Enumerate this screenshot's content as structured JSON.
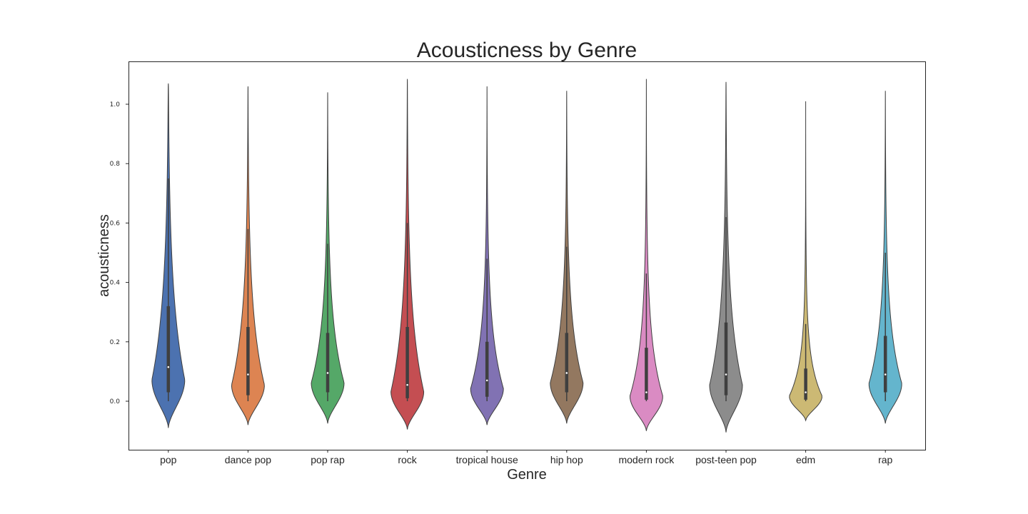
{
  "chart_data": {
    "type": "violin",
    "title": "Acousticness by Genre",
    "xlabel": "Genre",
    "ylabel": "acousticness",
    "ylim": [
      -0.16,
      1.15
    ],
    "yticks": [
      "0.0",
      "0.2",
      "0.4",
      "0.6",
      "0.8",
      "1.0"
    ],
    "grid": false,
    "legend": "none",
    "categories": [
      "pop",
      "dance pop",
      "pop rap",
      "rock",
      "tropical house",
      "hip hop",
      "modern rock",
      "post-teen pop",
      "edm",
      "rap"
    ],
    "series": [
      {
        "category": "pop",
        "color": "#4c72b0",
        "min": -0.09,
        "max": 1.07,
        "q1": 0.03,
        "median": 0.115,
        "q3": 0.32,
        "whisker_low": 0.0,
        "whisker_high": 0.75
      },
      {
        "category": "dance pop",
        "color": "#dd8452",
        "min": -0.08,
        "max": 1.06,
        "q1": 0.02,
        "median": 0.09,
        "q3": 0.25,
        "whisker_low": 0.0,
        "whisker_high": 0.58
      },
      {
        "category": "pop rap",
        "color": "#55a868",
        "min": -0.075,
        "max": 1.04,
        "q1": 0.03,
        "median": 0.095,
        "q3": 0.23,
        "whisker_low": 0.0,
        "whisker_high": 0.53
      },
      {
        "category": "rock",
        "color": "#c44e52",
        "min": -0.095,
        "max": 1.085,
        "q1": 0.01,
        "median": 0.055,
        "q3": 0.25,
        "whisker_low": 0.0,
        "whisker_high": 0.6
      },
      {
        "category": "tropical house",
        "color": "#8172b3",
        "min": -0.08,
        "max": 1.06,
        "q1": 0.015,
        "median": 0.07,
        "q3": 0.2,
        "whisker_low": 0.0,
        "whisker_high": 0.48
      },
      {
        "category": "hip hop",
        "color": "#937860",
        "min": -0.075,
        "max": 1.045,
        "q1": 0.03,
        "median": 0.095,
        "q3": 0.23,
        "whisker_low": 0.0,
        "whisker_high": 0.52
      },
      {
        "category": "modern rock",
        "color": "#da8bc3",
        "min": -0.1,
        "max": 1.085,
        "q1": 0.005,
        "median": 0.03,
        "q3": 0.18,
        "whisker_low": 0.0,
        "whisker_high": 0.43
      },
      {
        "category": "post-teen pop",
        "color": "#8c8c8c",
        "min": -0.105,
        "max": 1.075,
        "q1": 0.02,
        "median": 0.09,
        "q3": 0.265,
        "whisker_low": 0.0,
        "whisker_high": 0.62
      },
      {
        "category": "edm",
        "color": "#ccb974",
        "min": -0.065,
        "max": 1.01,
        "q1": 0.005,
        "median": 0.03,
        "q3": 0.11,
        "whisker_low": 0.0,
        "whisker_high": 0.26
      },
      {
        "category": "rap",
        "color": "#64b5cd",
        "min": -0.075,
        "max": 1.045,
        "q1": 0.03,
        "median": 0.09,
        "q3": 0.22,
        "whisker_low": 0.0,
        "whisker_high": 0.5
      }
    ]
  }
}
